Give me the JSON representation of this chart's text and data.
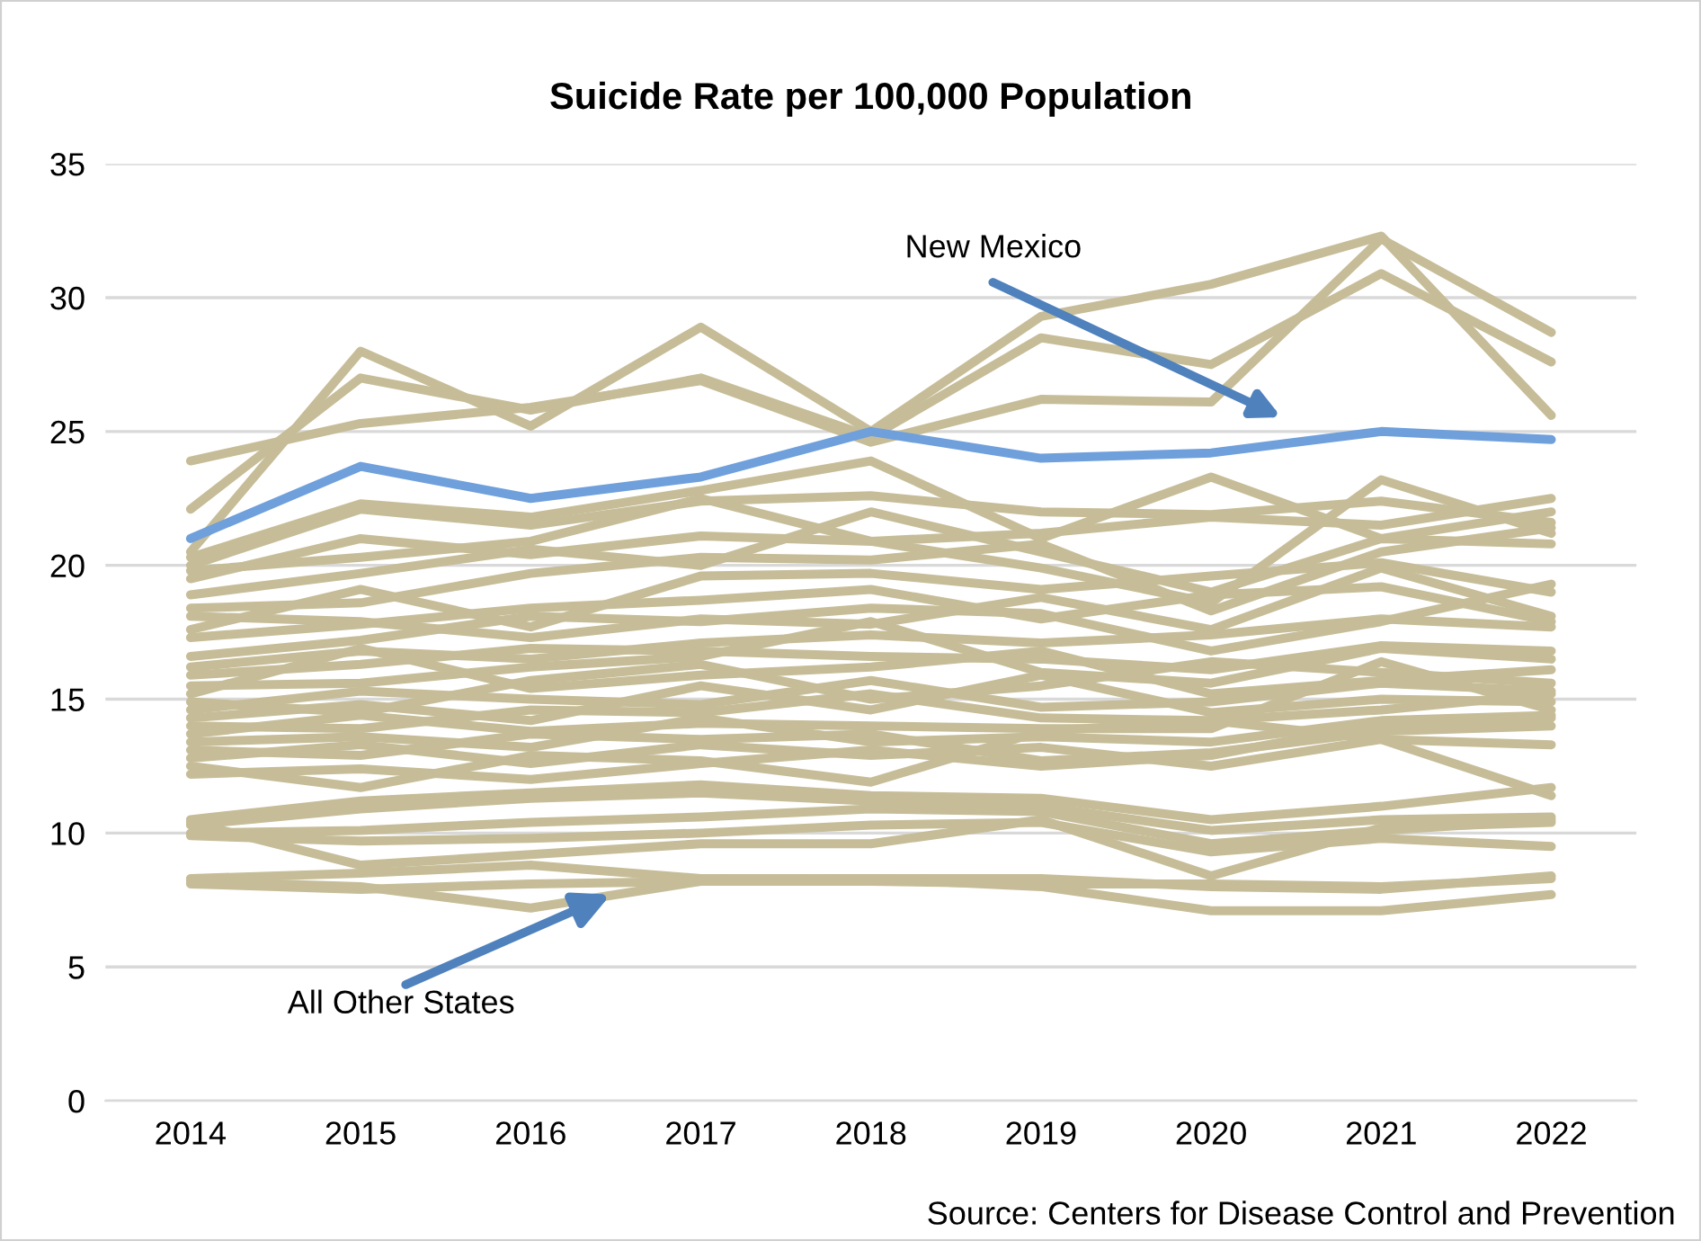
{
  "chart_data": {
    "type": "line",
    "title": "Suicide Rate per 100,000 Population",
    "categories": [
      "2014",
      "2015",
      "2016",
      "2017",
      "2018",
      "2019",
      "2020",
      "2021",
      "2022"
    ],
    "ylim": [
      0,
      35
    ],
    "yticks": [
      0,
      5,
      10,
      15,
      20,
      25,
      30,
      35
    ],
    "grid": "y",
    "legend": false,
    "marker": "none",
    "line_style": "solid",
    "series": [
      {
        "color": "#c6bd98",
        "values": [
          20.5,
          28.0,
          25.2,
          28.9,
          25.0,
          29.3,
          30.5,
          32.3,
          25.6
        ]
      },
      {
        "color": "#c6bd98",
        "values": [
          22.1,
          27.0,
          25.8,
          27.0,
          24.8,
          28.5,
          27.5,
          30.9,
          27.6
        ]
      },
      {
        "color": "#c6bd98",
        "values": [
          23.9,
          25.3,
          25.9,
          26.9,
          24.6,
          26.2,
          26.1,
          32.2,
          28.7
        ]
      },
      {
        "color": "#c6bd98",
        "values": [
          20.3,
          22.3,
          21.8,
          22.8,
          23.9,
          21.0,
          23.3,
          21.0,
          22.0
        ]
      },
      {
        "color": "#c6bd98",
        "values": [
          20.0,
          22.1,
          21.5,
          22.4,
          22.6,
          22.0,
          21.9,
          22.4,
          21.6
        ]
      },
      {
        "color": "#c6bd98",
        "values": [
          19.8,
          20.3,
          20.9,
          22.5,
          20.9,
          19.9,
          18.6,
          23.2,
          21.2
        ]
      },
      {
        "color": "#c6bd98",
        "values": [
          19.5,
          21.0,
          20.4,
          21.1,
          20.9,
          21.2,
          21.8,
          21.5,
          22.5
        ]
      },
      {
        "color": "#c6bd98",
        "values": [
          18.9,
          19.7,
          20.6,
          20.0,
          22.0,
          20.5,
          19.0,
          21.0,
          20.8
        ]
      },
      {
        "color": "#c6bd98",
        "values": [
          18.4,
          18.6,
          19.7,
          20.3,
          20.2,
          20.8,
          18.3,
          20.5,
          21.4
        ]
      },
      {
        "color": "#c6bd98",
        "values": [
          17.6,
          19.1,
          17.7,
          19.6,
          19.7,
          19.1,
          19.6,
          20.1,
          19.0
        ]
      },
      {
        "color": "#c6bd98",
        "values": [
          17.3,
          17.8,
          18.4,
          18.7,
          19.1,
          18.0,
          18.9,
          19.2,
          17.9
        ]
      },
      {
        "color": "#c6bd98",
        "values": [
          18.1,
          17.9,
          17.3,
          18.0,
          17.8,
          18.8,
          17.6,
          19.9,
          18.1
        ]
      },
      {
        "color": "#c6bd98",
        "values": [
          16.6,
          17.2,
          18.1,
          17.9,
          18.4,
          18.2,
          16.8,
          17.9,
          19.3
        ]
      },
      {
        "color": "#c6bd98",
        "values": [
          16.2,
          16.8,
          16.5,
          17.1,
          17.4,
          17.1,
          17.4,
          18.0,
          17.7
        ]
      },
      {
        "color": "#c6bd98",
        "values": [
          15.9,
          16.3,
          16.9,
          16.8,
          16.6,
          16.5,
          16.1,
          17.0,
          16.8
        ]
      },
      {
        "color": "#c6bd98",
        "values": [
          15.5,
          15.6,
          16.2,
          16.6,
          17.9,
          16.0,
          15.6,
          16.9,
          16.5
        ]
      },
      {
        "color": "#c6bd98",
        "values": [
          15.2,
          16.9,
          15.4,
          15.9,
          16.2,
          16.8,
          15.2,
          15.7,
          16.1
        ]
      },
      {
        "color": "#c6bd98",
        "values": [
          14.9,
          14.5,
          15.7,
          16.3,
          15.0,
          15.5,
          16.4,
          16.0,
          15.6
        ]
      },
      {
        "color": "#c6bd98",
        "values": [
          14.6,
          15.3,
          15.0,
          14.8,
          15.7,
          14.7,
          14.9,
          15.6,
          15.3
        ]
      },
      {
        "color": "#c6bd98",
        "values": [
          14.3,
          14.8,
          14.2,
          15.5,
          14.6,
          15.9,
          14.5,
          15.0,
          14.9
        ]
      },
      {
        "color": "#c6bd98",
        "values": [
          14.0,
          13.9,
          14.6,
          14.5,
          15.2,
          14.3,
          14.2,
          14.6,
          15.2
        ]
      },
      {
        "color": "#c6bd98",
        "values": [
          13.7,
          14.4,
          13.8,
          14.1,
          14.0,
          13.9,
          13.9,
          16.4,
          14.6
        ]
      },
      {
        "color": "#c6bd98",
        "values": [
          13.4,
          13.6,
          13.2,
          14.3,
          13.4,
          13.6,
          13.4,
          14.2,
          14.4
        ]
      },
      {
        "color": "#c6bd98",
        "values": [
          13.1,
          12.9,
          13.7,
          13.5,
          13.7,
          12.7,
          13.0,
          13.8,
          14.0
        ]
      },
      {
        "color": "#c6bd98",
        "values": [
          12.8,
          13.3,
          12.6,
          13.3,
          12.9,
          13.2,
          12.5,
          13.5,
          13.3
        ]
      },
      {
        "color": "#c6bd98",
        "values": [
          12.5,
          11.7,
          12.9,
          12.7,
          11.9,
          13.8,
          14.2,
          13.5,
          11.4
        ]
      },
      {
        "color": "#c6bd98",
        "values": [
          12.2,
          12.4,
          12.0,
          12.6,
          13.1,
          12.5,
          12.9,
          14.1,
          14.3
        ]
      },
      {
        "color": "#c6bd98",
        "values": [
          10.5,
          11.2,
          11.5,
          11.8,
          11.4,
          11.3,
          10.5,
          11.0,
          11.7
        ]
      },
      {
        "color": "#c6bd98",
        "values": [
          10.3,
          10.9,
          11.3,
          11.5,
          11.2,
          11.0,
          10.1,
          10.5,
          10.6
        ]
      },
      {
        "color": "#c6bd98",
        "values": [
          10.0,
          10.1,
          10.4,
          10.6,
          10.9,
          10.8,
          9.6,
          10.1,
          10.5
        ]
      },
      {
        "color": "#c6bd98",
        "values": [
          9.9,
          9.7,
          9.8,
          10.0,
          10.3,
          10.4,
          9.3,
          9.8,
          9.5
        ]
      },
      {
        "color": "#c6bd98",
        "values": [
          10.4,
          8.8,
          9.2,
          9.6,
          9.6,
          10.5,
          8.4,
          10.2,
          10.4
        ]
      },
      {
        "color": "#c6bd98",
        "values": [
          8.3,
          8.5,
          8.8,
          8.3,
          8.3,
          8.3,
          8.0,
          7.9,
          8.4
        ]
      },
      {
        "color": "#c6bd98",
        "values": [
          8.2,
          8.0,
          7.2,
          8.2,
          8.3,
          8.0,
          7.1,
          7.1,
          7.7
        ]
      },
      {
        "color": "#c6bd98",
        "values": [
          8.1,
          7.9,
          8.1,
          8.2,
          8.2,
          8.1,
          8.1,
          8.0,
          8.3
        ]
      },
      {
        "name": "New Mexico",
        "color": "#6fa0dc",
        "values": [
          21.0,
          23.7,
          22.5,
          23.3,
          25.0,
          24.0,
          24.2,
          25.0,
          24.7
        ]
      }
    ],
    "annotations": [
      {
        "text": "All Other States",
        "y": 7.7
      },
      "Source: Centers for Disease Control and Prevention"
    ]
  }
}
